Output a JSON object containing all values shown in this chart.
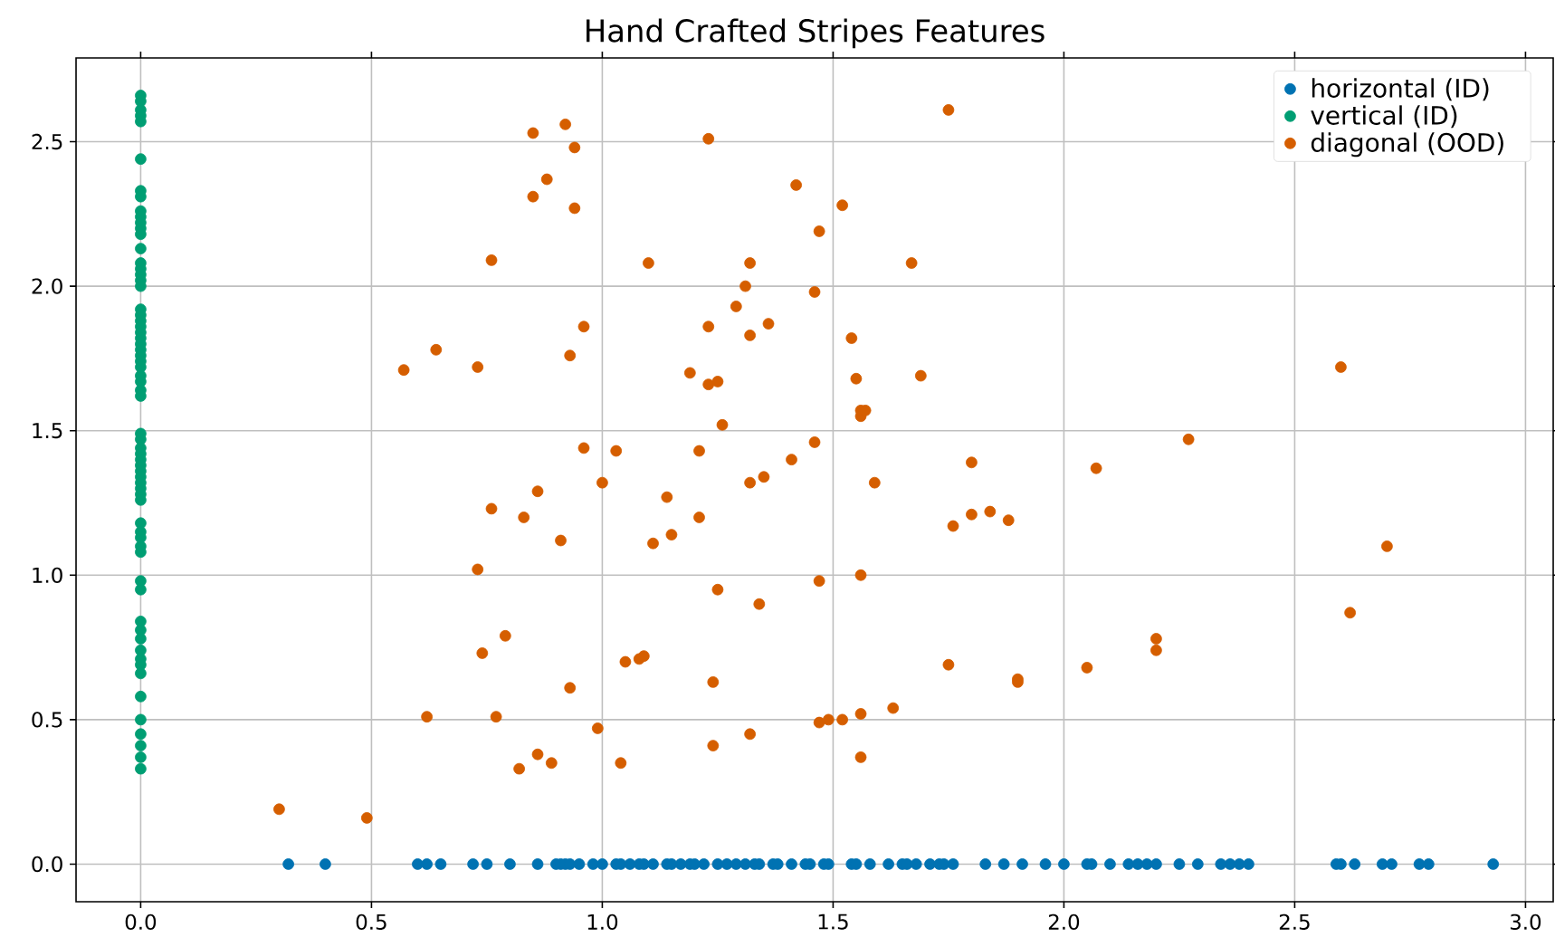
{
  "chart_data": {
    "type": "scatter",
    "title": "Hand Crafted Stripes Features",
    "xlim": [
      -0.14,
      3.06
    ],
    "ylim": [
      -0.13,
      2.79
    ],
    "xticks": [
      {
        "value": 0,
        "label": "0.0"
      },
      {
        "value": 0.5,
        "label": "0.5"
      },
      {
        "value": 1,
        "label": "1.0"
      },
      {
        "value": 1.5,
        "label": "1.5"
      },
      {
        "value": 2,
        "label": "2.0"
      },
      {
        "value": 2.5,
        "label": "2.5"
      },
      {
        "value": 3,
        "label": "3.0"
      }
    ],
    "yticks": [
      {
        "value": 0,
        "label": "0.0"
      },
      {
        "value": 0.5,
        "label": "0.5"
      },
      {
        "value": 1,
        "label": "1.0"
      },
      {
        "value": 1.5,
        "label": "1.5"
      },
      {
        "value": 2,
        "label": "2.0"
      },
      {
        "value": 2.5,
        "label": "2.5"
      }
    ],
    "grid": true,
    "legend": "top right",
    "marker": "circle",
    "series": [
      {
        "name": "horizontal (ID)",
        "color": "#0072b2",
        "x": [
          0.32,
          0.4,
          0.6,
          0.62,
          0.65,
          0.72,
          0.75,
          0.8,
          0.86,
          0.9,
          0.91,
          0.92,
          0.93,
          0.95,
          0.98,
          1.0,
          1.03,
          1.04,
          1.06,
          1.08,
          1.09,
          1.11,
          1.14,
          1.15,
          1.17,
          1.19,
          1.2,
          1.22,
          1.25,
          1.27,
          1.29,
          1.31,
          1.33,
          1.34,
          1.37,
          1.38,
          1.41,
          1.44,
          1.45,
          1.48,
          1.49,
          1.54,
          1.55,
          1.58,
          1.62,
          1.65,
          1.66,
          1.68,
          1.71,
          1.73,
          1.74,
          1.76,
          1.83,
          1.87,
          1.91,
          1.96,
          2.0,
          2.05,
          2.06,
          2.1,
          2.14,
          2.16,
          2.18,
          2.2,
          2.25,
          2.29,
          2.34,
          2.36,
          2.38,
          2.4,
          2.59,
          2.6,
          2.63,
          2.69,
          2.71,
          2.77,
          2.79,
          2.93
        ],
        "values": [
          0,
          0,
          0,
          0,
          0,
          0,
          0,
          0,
          0,
          0,
          0,
          0,
          0,
          0,
          0,
          0,
          0,
          0,
          0,
          0,
          0,
          0,
          0,
          0,
          0,
          0,
          0,
          0,
          0,
          0,
          0,
          0,
          0,
          0,
          0,
          0,
          0,
          0,
          0,
          0,
          0,
          0,
          0,
          0,
          0,
          0,
          0,
          0,
          0,
          0,
          0,
          0,
          0,
          0,
          0,
          0,
          0,
          0,
          0,
          0,
          0,
          0,
          0,
          0,
          0,
          0,
          0,
          0,
          0,
          0,
          0,
          0,
          0,
          0,
          0,
          0,
          0,
          0
        ]
      },
      {
        "name": "vertical (ID)",
        "color": "#009e73",
        "x": [
          0,
          0,
          0,
          0,
          0,
          0,
          0,
          0,
          0,
          0,
          0,
          0,
          0,
          0,
          0,
          0,
          0,
          0,
          0,
          0,
          0,
          0,
          0,
          0,
          0,
          0,
          0,
          0,
          0,
          0,
          0,
          0,
          0,
          0,
          0,
          0,
          0,
          0,
          0,
          0,
          0,
          0,
          0,
          0,
          0,
          0,
          0,
          0,
          0,
          0,
          0,
          0,
          0,
          0,
          0,
          0,
          0,
          0,
          0,
          0,
          0,
          0,
          0,
          0,
          0,
          0
        ],
        "values": [
          2.66,
          2.64,
          2.61,
          2.59,
          2.57,
          2.44,
          2.33,
          2.31,
          2.26,
          2.24,
          2.22,
          2.2,
          2.18,
          2.13,
          2.08,
          2.06,
          2.04,
          2.02,
          2.0,
          1.92,
          1.9,
          1.88,
          1.86,
          1.84,
          1.82,
          1.8,
          1.78,
          1.76,
          1.74,
          1.72,
          1.69,
          1.67,
          1.64,
          1.62,
          1.49,
          1.47,
          1.44,
          1.42,
          1.4,
          1.38,
          1.36,
          1.34,
          1.32,
          1.3,
          1.28,
          1.26,
          1.18,
          1.15,
          1.13,
          1.1,
          1.08,
          0.98,
          0.95,
          0.84,
          0.81,
          0.78,
          0.74,
          0.71,
          0.69,
          0.66,
          0.58,
          0.5,
          0.45,
          0.41,
          0.37,
          0.33
        ]
      },
      {
        "name": "diagonal (OOD)",
        "color": "#d55e00",
        "x": [
          0.3,
          0.49,
          0.57,
          0.64,
          0.73,
          0.76,
          0.85,
          0.85,
          0.88,
          0.92,
          0.94,
          0.94,
          0.96,
          0.93,
          0.96,
          0.86,
          0.83,
          0.91,
          0.76,
          0.73,
          0.74,
          0.79,
          0.62,
          0.77,
          0.82,
          0.86,
          0.89,
          0.93,
          0.99,
          1.0,
          1.03,
          1.04,
          1.05,
          1.08,
          1.09,
          1.1,
          1.11,
          1.14,
          1.15,
          1.19,
          1.21,
          1.21,
          1.23,
          1.23,
          1.25,
          1.26,
          1.25,
          1.24,
          1.24,
          1.23,
          1.29,
          1.31,
          1.32,
          1.32,
          1.32,
          1.35,
          1.36,
          1.34,
          1.32,
          1.42,
          1.41,
          1.46,
          1.46,
          1.47,
          1.47,
          1.47,
          1.49,
          1.52,
          1.52,
          1.54,
          1.55,
          1.56,
          1.56,
          1.57,
          1.56,
          1.56,
          1.56,
          1.59,
          1.63,
          1.67,
          1.69,
          1.75,
          1.76,
          1.75,
          1.8,
          1.8,
          1.84,
          1.88,
          1.9,
          1.9,
          2.05,
          2.07,
          2.2,
          2.2,
          2.27,
          2.6,
          2.62,
          2.7
        ],
        "values": [
          0.19,
          0.16,
          1.71,
          1.78,
          1.72,
          2.09,
          2.53,
          2.31,
          2.37,
          2.56,
          2.48,
          2.27,
          1.86,
          1.76,
          1.44,
          1.29,
          1.2,
          1.12,
          1.23,
          1.02,
          0.73,
          0.79,
          0.51,
          0.51,
          0.33,
          0.38,
          0.35,
          0.61,
          0.47,
          1.32,
          1.43,
          0.35,
          0.7,
          0.71,
          0.72,
          2.08,
          1.11,
          1.27,
          1.14,
          1.7,
          1.43,
          1.2,
          1.86,
          1.66,
          1.67,
          1.52,
          0.95,
          0.63,
          0.41,
          2.51,
          1.93,
          2.0,
          2.08,
          1.83,
          1.32,
          1.34,
          1.87,
          0.9,
          0.45,
          2.35,
          1.4,
          1.98,
          1.46,
          2.19,
          0.98,
          0.49,
          0.5,
          0.5,
          2.28,
          1.82,
          1.68,
          1.55,
          1.57,
          1.57,
          1.0,
          0.52,
          0.37,
          1.32,
          0.54,
          2.08,
          1.69,
          2.61,
          1.17,
          0.69,
          1.21,
          1.39,
          1.22,
          1.19,
          0.64,
          0.63,
          0.68,
          1.37,
          0.78,
          0.74,
          1.47,
          1.72,
          0.87,
          1.1
        ]
      }
    ]
  }
}
